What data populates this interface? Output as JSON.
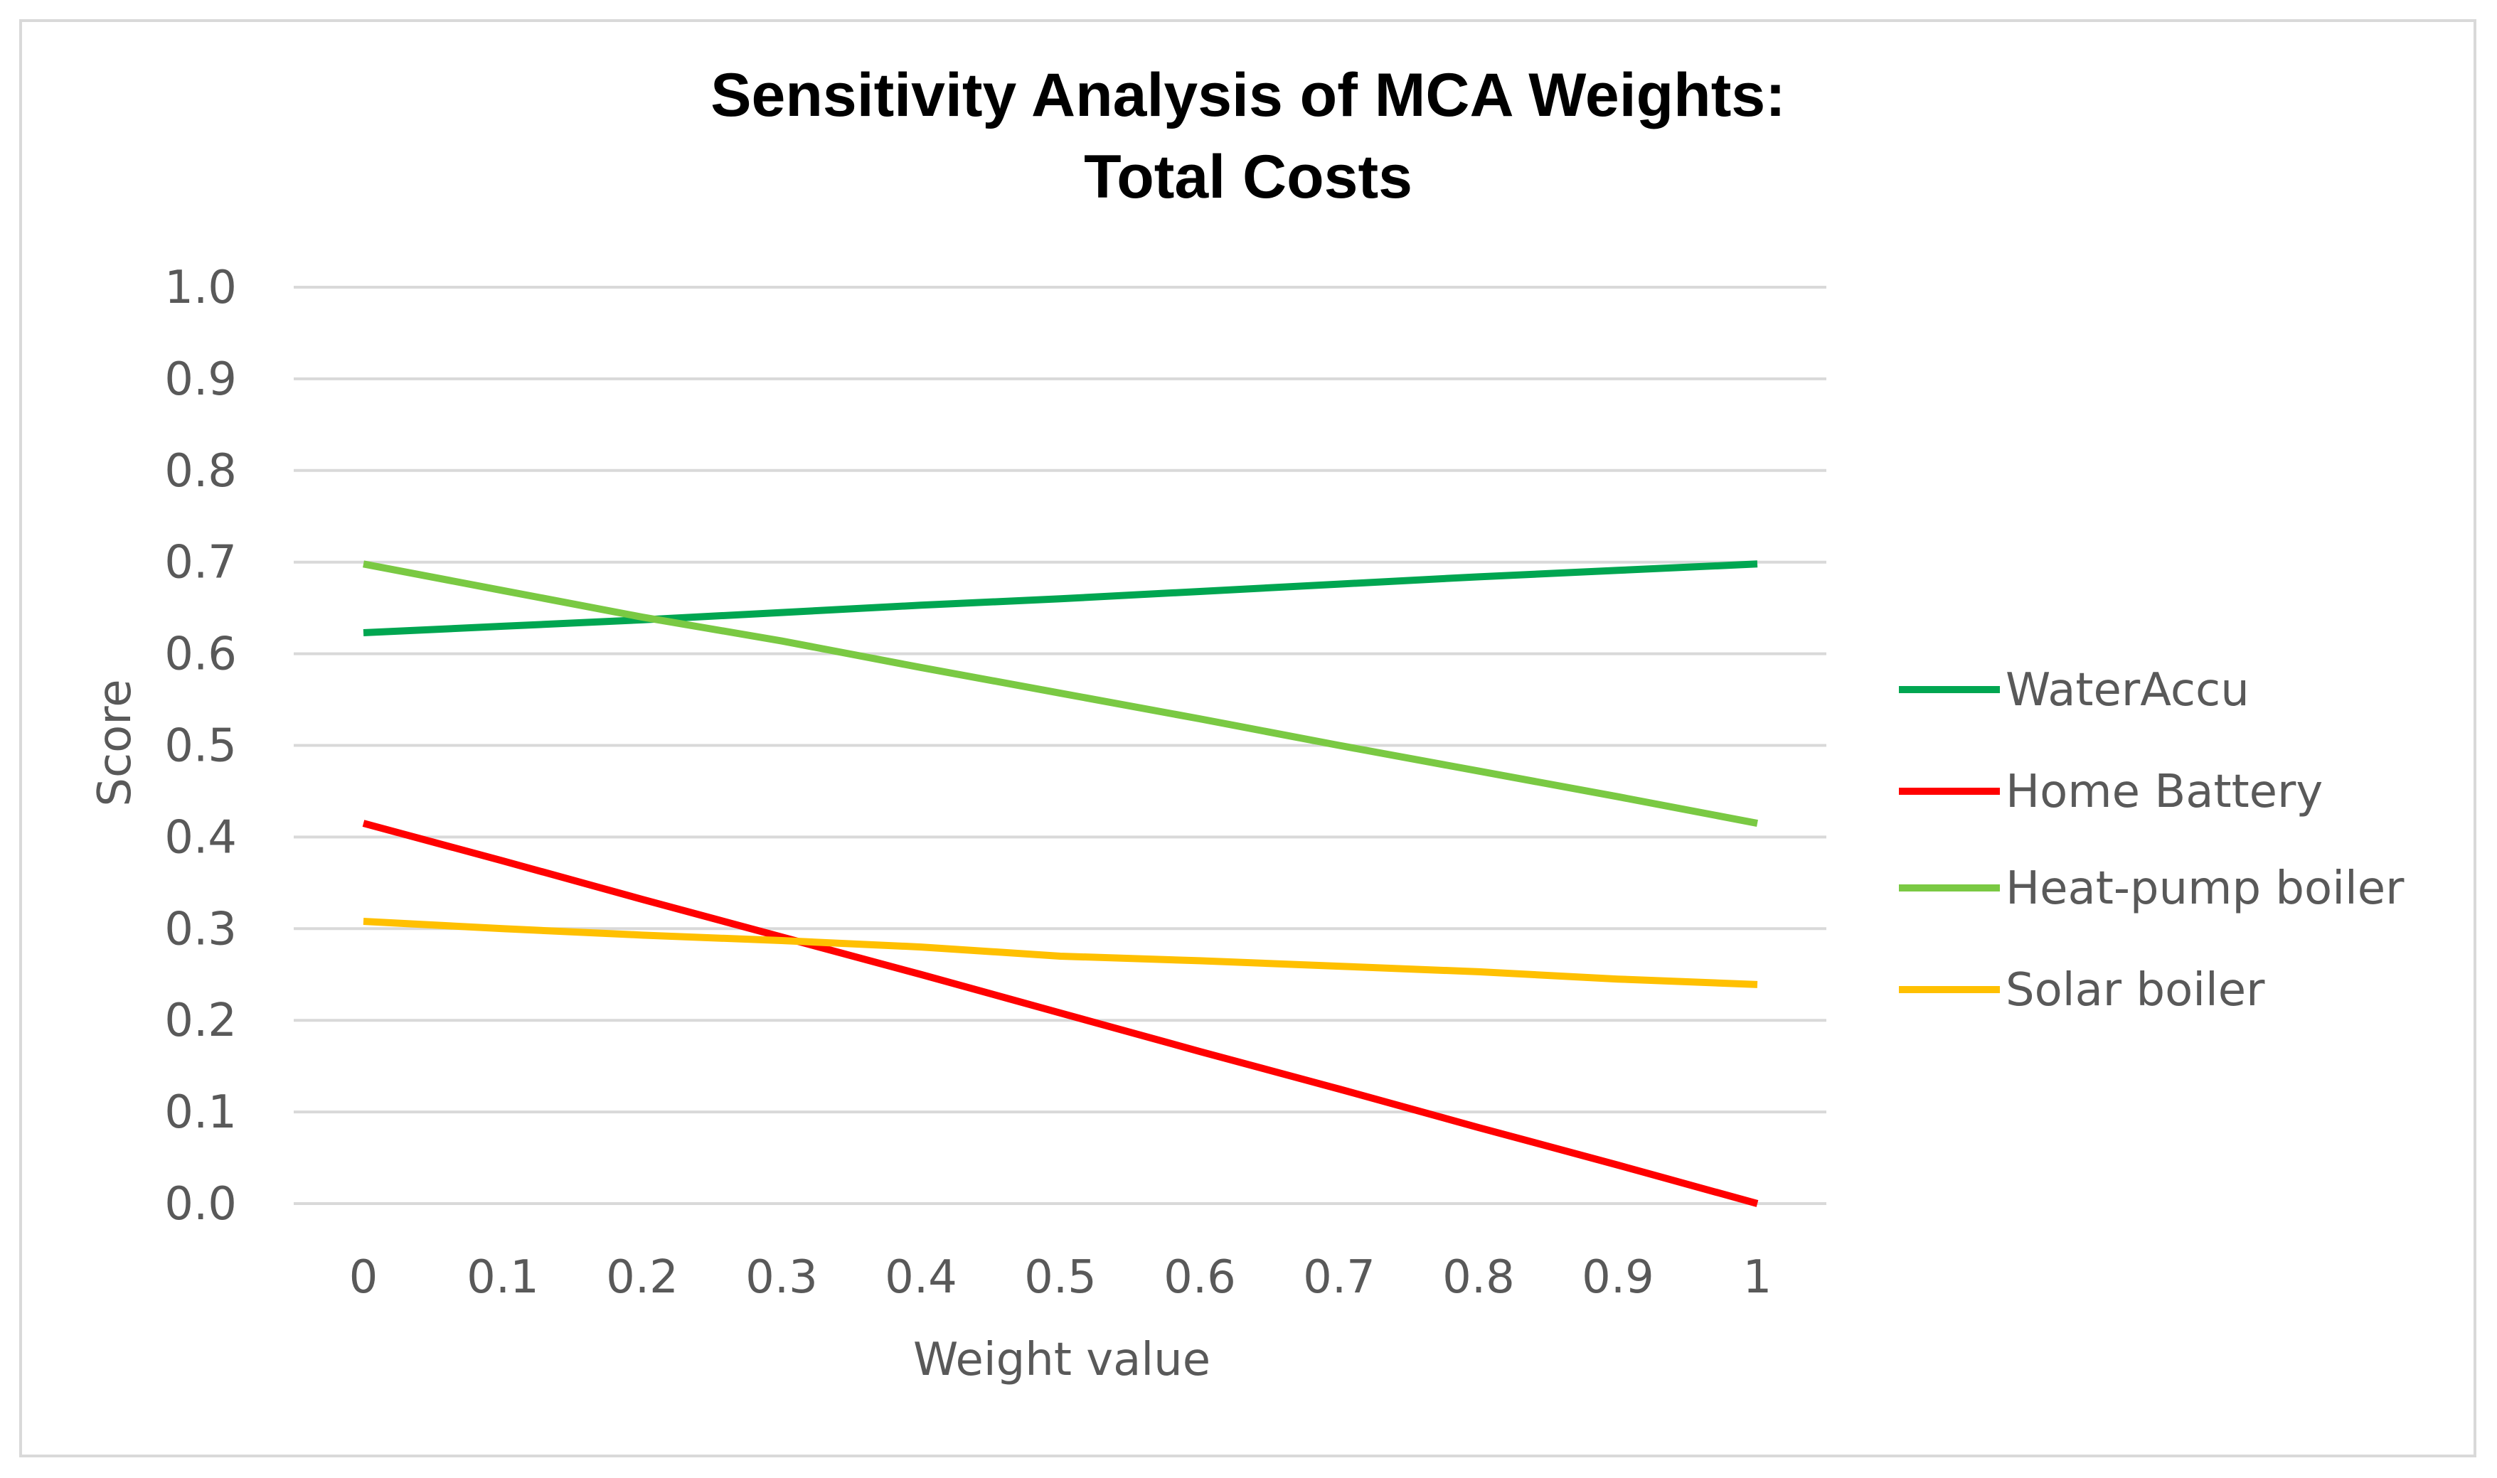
{
  "chart_data": {
    "type": "line",
    "title_line1": "Sensitivity Analysis of MCA Weights:",
    "title_line2": "Total Costs",
    "xlabel": "Weight value",
    "ylabel": "Score",
    "x": [
      0,
      0.1,
      0.2,
      0.3,
      0.4,
      0.5,
      0.6,
      0.7,
      0.8,
      0.9,
      1
    ],
    "x_tick_labels": [
      "0",
      "0.1",
      "0.2",
      "0.3",
      "0.4",
      "0.5",
      "0.6",
      "0.7",
      "0.8",
      "0.9",
      "1"
    ],
    "ylim": [
      0,
      1
    ],
    "y_ticks": [
      0,
      0.1,
      0.2,
      0.3,
      0.4,
      0.5,
      0.6,
      0.7,
      0.8,
      0.9,
      1.0
    ],
    "y_tick_labels": [
      "0.0",
      "0.1",
      "0.2",
      "0.3",
      "0.4",
      "0.5",
      "0.6",
      "0.7",
      "0.8",
      "0.9",
      "1.0"
    ],
    "grid": true,
    "legend_position": "right",
    "series": [
      {
        "name": "WaterAccu",
        "color": "#00a651",
        "values": [
          0.623,
          0.63,
          0.637,
          0.645,
          0.653,
          0.66,
          0.668,
          0.676,
          0.684,
          0.691,
          0.698
        ]
      },
      {
        "name": "Home Battery",
        "color": "#ff0000",
        "values": [
          0.415,
          0.374,
          0.332,
          0.291,
          0.25,
          0.208,
          0.166,
          0.125,
          0.083,
          0.042,
          0.0
        ]
      },
      {
        "name": "Heat-pump boiler",
        "color": "#7ac943",
        "values": [
          0.698,
          0.669,
          0.64,
          0.614,
          0.585,
          0.557,
          0.529,
          0.5,
          0.472,
          0.444,
          0.415
        ]
      },
      {
        "name": "Solar boiler",
        "color": "#ffc000",
        "values": [
          0.308,
          0.3,
          0.293,
          0.287,
          0.28,
          0.27,
          0.265,
          0.259,
          0.253,
          0.245,
          0.239
        ]
      }
    ]
  }
}
